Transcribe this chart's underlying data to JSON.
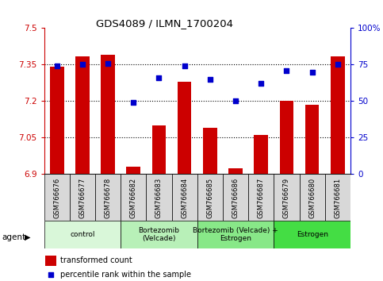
{
  "title": "GDS4089 / ILMN_1700204",
  "samples": [
    "GSM766676",
    "GSM766677",
    "GSM766678",
    "GSM766682",
    "GSM766683",
    "GSM766684",
    "GSM766685",
    "GSM766686",
    "GSM766687",
    "GSM766679",
    "GSM766680",
    "GSM766681"
  ],
  "bar_values": [
    7.34,
    7.385,
    7.39,
    6.93,
    7.1,
    7.28,
    7.09,
    6.925,
    7.06,
    7.2,
    7.185,
    7.385
  ],
  "percentile_values": [
    74,
    75,
    76,
    49,
    66,
    74,
    65,
    50,
    62,
    71,
    70,
    75
  ],
  "bar_color": "#cc0000",
  "percentile_color": "#0000cc",
  "ylim_left": [
    6.9,
    7.5
  ],
  "ylim_right": [
    0,
    100
  ],
  "yticks_left": [
    6.9,
    7.05,
    7.2,
    7.35,
    7.5
  ],
  "yticks_right": [
    0,
    25,
    50,
    75,
    100
  ],
  "ytick_labels_left": [
    "6.9",
    "7.05",
    "7.2",
    "7.35",
    "7.5"
  ],
  "ytick_labels_right": [
    "0",
    "25",
    "50",
    "75",
    "100%"
  ],
  "hlines": [
    7.05,
    7.2,
    7.35
  ],
  "groups": [
    {
      "label": "control",
      "start": 0,
      "end": 3,
      "color": "#d9f7d9"
    },
    {
      "label": "Bortezomib\n(Velcade)",
      "start": 3,
      "end": 6,
      "color": "#b8f0b8"
    },
    {
      "label": "Bortezomib (Velcade) +\nEstrogen",
      "start": 6,
      "end": 9,
      "color": "#88e888"
    },
    {
      "label": "Estrogen",
      "start": 9,
      "end": 12,
      "color": "#44dd44"
    }
  ],
  "xtick_bg": "#d8d8d8",
  "agent_label": "agent",
  "legend_bar_label": "transformed count",
  "legend_dot_label": "percentile rank within the sample",
  "bar_width": 0.55
}
